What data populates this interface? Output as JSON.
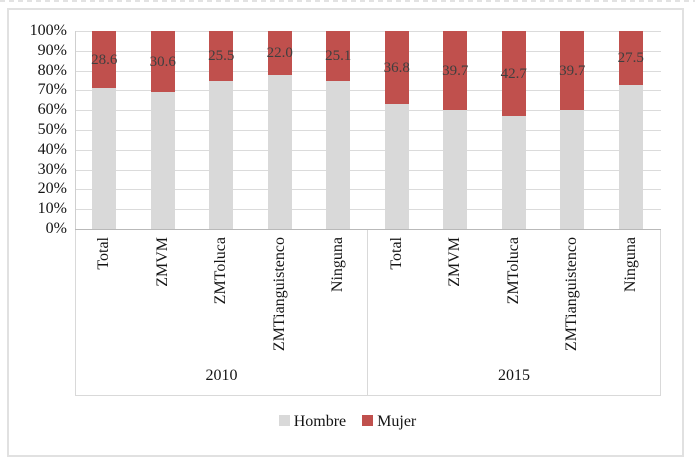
{
  "chart_data": {
    "type": "bar",
    "subtype": "100%-stacked-column",
    "title": "",
    "xlabel": "",
    "ylabel": "",
    "ylim": [
      0,
      100
    ],
    "grid": true,
    "legend_position": "bottom",
    "y_axis": {
      "ticks": [
        "0%",
        "10%",
        "20%",
        "30%",
        "40%",
        "50%",
        "60%",
        "70%",
        "80%",
        "90%",
        "100%"
      ]
    },
    "categories": [
      "Total",
      "ZMVM",
      "ZMToluca",
      "ZMTianguistenco",
      "Ninguna"
    ],
    "groups": [
      {
        "label": "2010",
        "mujer": [
          28.6,
          30.6,
          25.5,
          22.0,
          25.1
        ],
        "hombre": [
          71.4,
          69.4,
          74.5,
          78.0,
          74.9
        ]
      },
      {
        "label": "2015",
        "mujer": [
          36.8,
          39.7,
          42.7,
          39.7,
          27.5
        ],
        "hombre": [
          63.2,
          60.3,
          57.3,
          60.3,
          72.5
        ]
      }
    ],
    "series": [
      {
        "name": "Hombre",
        "color": "#d9d9d9"
      },
      {
        "name": "Mujer",
        "color": "#c0504d"
      }
    ],
    "data_labels": {
      "series": "Mujer",
      "position": "center",
      "color": "#3f3f3f"
    }
  }
}
